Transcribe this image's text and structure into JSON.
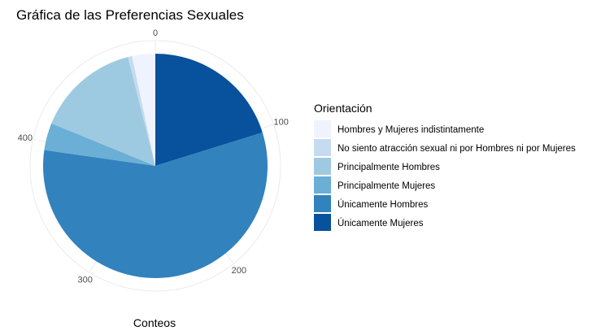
{
  "chart_data": {
    "type": "pie",
    "title": "Gráfica de las Preferencias Sexuales",
    "xlabel": "Conteos",
    "ylabel": "",
    "scale_max": 510,
    "radial_ticks": [
      0,
      100,
      200,
      300,
      400
    ],
    "legend": {
      "title": "Orientación",
      "position": "right"
    },
    "categories": [
      "Hombres y Mujeres indistintamente",
      "No siento atracción sexual ni por Hombres ni por Mujeres",
      "Principalmente Hombres",
      "Principalmente Mujeres",
      "Únicamente Hombres",
      "Únicamente Mujeres"
    ],
    "values": [
      17,
      3,
      76,
      20,
      291,
      103
    ],
    "colors": [
      "#eff3ff",
      "#c6dbef",
      "#9ecae1",
      "#6baed6",
      "#3182bd",
      "#08519c"
    ],
    "stack_order": [
      "Únicamente Mujeres",
      "Únicamente Hombres",
      "Principalmente Mujeres",
      "Principalmente Hombres",
      "No siento atracción sexual ni por Hombres ni por Mujeres",
      "Hombres y Mujeres indistintamente"
    ],
    "grid": true
  }
}
